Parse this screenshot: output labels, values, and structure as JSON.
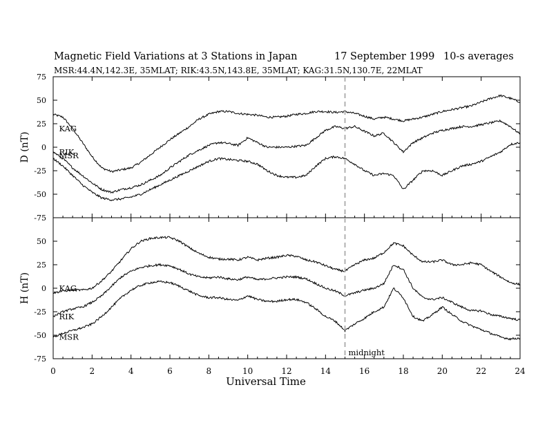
{
  "header": {
    "title": "Magnetic Field Variations at 3 Stations in Japan",
    "date": "17 September 1999",
    "averaging": "10-s averages",
    "stations_line": "MSR:44.4N,142.3E, 35MLAT;  RIK:43.5N,143.8E, 35MLAT;  KAG:31.5N,130.7E, 22MLAT"
  },
  "chart_data": {
    "type": "line",
    "xlabel": "Universal Time",
    "xlim": [
      0,
      24
    ],
    "x_ticks": [
      0,
      2,
      4,
      6,
      8,
      10,
      12,
      14,
      16,
      18,
      20,
      22,
      24
    ],
    "marker": {
      "x": 15,
      "label": "midnight",
      "color": "#b0b0b0"
    },
    "x": [
      0,
      0.5,
      1,
      1.5,
      2,
      2.5,
      3,
      3.5,
      4,
      4.5,
      5,
      5.5,
      6,
      6.5,
      7,
      7.5,
      8,
      8.5,
      9,
      9.5,
      10,
      10.5,
      11,
      11.5,
      12,
      12.5,
      13,
      13.5,
      14,
      14.5,
      15,
      15.5,
      16,
      16.5,
      17,
      17.5,
      18,
      18.5,
      19,
      19.5,
      20,
      20.5,
      21,
      21.5,
      22,
      22.5,
      23,
      23.5,
      24
    ],
    "panels": [
      {
        "ylabel": "D (nT)",
        "ylim": [
          -75,
          75
        ],
        "y_ticks": [
          75,
          50,
          25,
          0,
          -25,
          -50,
          -75
        ],
        "series": [
          {
            "name": "KAG",
            "values": [
              35,
              32,
              20,
              5,
              -10,
              -22,
              -26,
              -24,
              -22,
              -16,
              -8,
              0,
              8,
              15,
              22,
              30,
              35,
              38,
              38,
              36,
              35,
              34,
              32,
              32,
              33,
              35,
              36,
              38,
              38,
              37,
              38,
              36,
              33,
              30,
              32,
              30,
              28,
              30,
              32,
              35,
              38,
              40,
              42,
              44,
              48,
              52,
              55,
              52,
              48
            ]
          },
          {
            "name": "RIK",
            "values": [
              -5,
              -12,
              -22,
              -30,
              -38,
              -45,
              -48,
              -45,
              -43,
              -40,
              -35,
              -30,
              -22,
              -15,
              -8,
              -3,
              2,
              5,
              4,
              2,
              10,
              5,
              0,
              0,
              0,
              1,
              2,
              10,
              18,
              22,
              20,
              22,
              17,
              12,
              15,
              5,
              -5,
              5,
              10,
              15,
              18,
              20,
              22,
              22,
              24,
              26,
              28,
              22,
              14
            ]
          },
          {
            "name": "MSR",
            "values": [
              -12,
              -20,
              -30,
              -40,
              -48,
              -54,
              -56,
              -55,
              -53,
              -50,
              -45,
              -40,
              -35,
              -30,
              -25,
              -20,
              -15,
              -12,
              -13,
              -14,
              -15,
              -18,
              -25,
              -30,
              -32,
              -32,
              -30,
              -20,
              -12,
              -10,
              -12,
              -18,
              -25,
              -30,
              -28,
              -30,
              -45,
              -35,
              -25,
              -25,
              -30,
              -25,
              -20,
              -18,
              -15,
              -10,
              -5,
              3,
              5
            ]
          }
        ],
        "labels": [
          {
            "text": "KAG",
            "x": 0.3,
            "y": 20
          },
          {
            "text": "RIK",
            "x": 0.3,
            "y": -5
          },
          {
            "text": "MSR",
            "x": 0.3,
            "y": -9
          }
        ]
      },
      {
        "ylabel": "H (nT)",
        "ylim": [
          -75,
          75
        ],
        "y_ticks": [
          50,
          25,
          0,
          -25,
          -50,
          -75
        ],
        "series": [
          {
            "name": "KAG",
            "values": [
              -5,
              -3,
              -2,
              -2,
              0,
              8,
              18,
              30,
              42,
              50,
              53,
              54,
              54,
              50,
              43,
              37,
              33,
              31,
              31,
              30,
              33,
              30,
              32,
              33,
              35,
              34,
              30,
              28,
              24,
              20,
              18,
              25,
              30,
              32,
              38,
              48,
              45,
              35,
              28,
              28,
              30,
              25,
              25,
              27,
              25,
              18,
              12,
              6,
              4
            ]
          },
          {
            "name": "RIK",
            "values": [
              -30,
              -25,
              -22,
              -20,
              -15,
              -8,
              2,
              12,
              18,
              22,
              24,
              25,
              24,
              20,
              15,
              12,
              11,
              12,
              10,
              9,
              12,
              9,
              10,
              11,
              12,
              12,
              10,
              5,
              0,
              -3,
              -8,
              -5,
              -2,
              0,
              5,
              25,
              20,
              0,
              -10,
              -12,
              -10,
              -15,
              -20,
              -24,
              -24,
              -28,
              -30,
              -32,
              -34
            ]
          },
          {
            "name": "MSR",
            "values": [
              -52,
              -48,
              -45,
              -42,
              -38,
              -30,
              -20,
              -10,
              -2,
              3,
              6,
              7,
              6,
              2,
              -3,
              -8,
              -10,
              -10,
              -12,
              -13,
              -8,
              -12,
              -14,
              -14,
              -12,
              -12,
              -15,
              -22,
              -30,
              -35,
              -45,
              -38,
              -32,
              -25,
              -20,
              0,
              -10,
              -30,
              -35,
              -28,
              -20,
              -28,
              -35,
              -40,
              -44,
              -48,
              -52,
              -54,
              -53
            ]
          }
        ],
        "labels": [
          {
            "text": "KAG",
            "x": 0.3,
            "y": 0
          },
          {
            "text": "RIK",
            "x": 0.3,
            "y": -30
          },
          {
            "text": "MSR",
            "x": 0.3,
            "y": -52
          }
        ]
      }
    ]
  }
}
